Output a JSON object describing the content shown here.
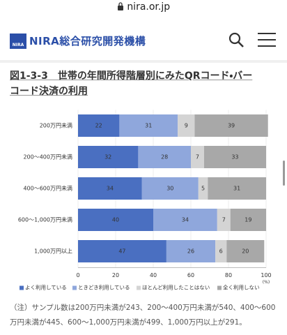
{
  "browser": {
    "url": "nira.or.jp"
  },
  "header": {
    "logo_mark": "NIRA",
    "logo": "NIRA総合研究開発機構"
  },
  "heading": "図1-3-3　世帯の年間所得階層別にみたQRコード・バーコード決済の利用",
  "chart_data": {
    "type": "stacked_barh",
    "categories": [
      "200万円未満",
      "200～400万円未満",
      "400～600万円未満",
      "600～1,000万円未満",
      "1,000万円以上"
    ],
    "series": [
      {
        "name": "よく利用している",
        "color": "#4a6fc1",
        "values": [
          22,
          32,
          34,
          40,
          47
        ]
      },
      {
        "name": "ときどき利用している",
        "color": "#8fa7dc",
        "values": [
          31,
          28,
          30,
          34,
          26
        ]
      },
      {
        "name": "ほとんど利用したことはない",
        "color": "#d4d4d4",
        "values": [
          9,
          7,
          5,
          7,
          6
        ]
      },
      {
        "name": "全く利用しない",
        "color": "#a8a8a8",
        "values": [
          39,
          33,
          31,
          19,
          20
        ]
      }
    ],
    "xlim": [
      0,
      100
    ],
    "xticks": [
      0,
      20,
      40,
      60,
      80,
      100
    ],
    "x_label": "(%)",
    "grid": true
  },
  "note": "（注）サンプル数は200万円未満が243、200～400万円未満が540、400～600万円未満が445、600～1,000万円未満が499、1,000万円以上が291。"
}
